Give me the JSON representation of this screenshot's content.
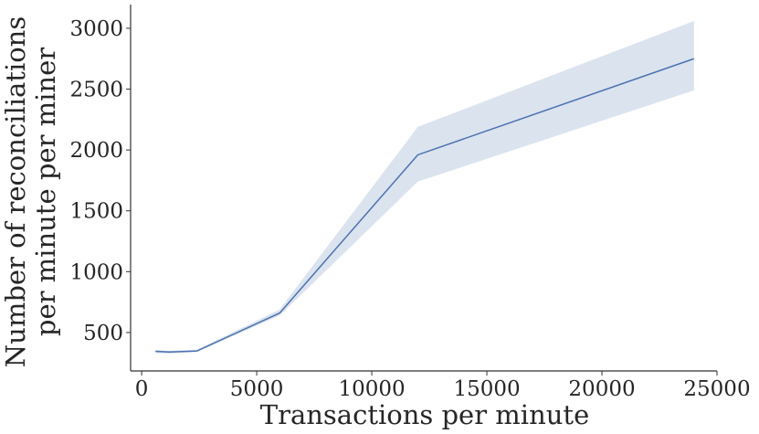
{
  "chart_data": {
    "type": "line",
    "xlabel": "Transactions per minute",
    "ylabel": [
      "Number of reconciliations",
      "per minute per miner"
    ],
    "x": [
      600,
      1200,
      2400,
      6000,
      12000,
      24000
    ],
    "series": [
      {
        "color": "#4c72b0",
        "values": [
          345,
          340,
          348,
          660,
          1960,
          2750
        ],
        "lower": [
          330,
          325,
          340,
          640,
          1740,
          2490
        ],
        "upper": [
          355,
          350,
          358,
          690,
          2190,
          3060
        ]
      }
    ],
    "xlim": [
      -480,
      25000
    ],
    "ylim": [
      184,
      3195
    ],
    "xticks": [
      0,
      5000,
      10000,
      15000,
      20000,
      25000
    ],
    "yticks": [
      500,
      1000,
      1500,
      2000,
      2500,
      3000
    ],
    "grid": false
  }
}
